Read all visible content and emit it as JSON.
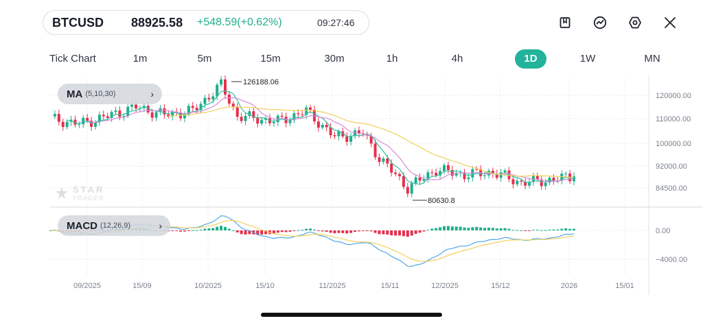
{
  "header": {
    "symbol": "BTCUSD",
    "price": "88925.58",
    "change": "+548.59(+0.62%)",
    "time": "09:27:46",
    "colors": {
      "up": "#1fae8b",
      "down": "#e5304d"
    }
  },
  "toolbar": {
    "icons": [
      "bookmark-icon",
      "indicator-icon",
      "settings-icon",
      "close-icon"
    ]
  },
  "timeframes": {
    "items": [
      "Tick Chart",
      "1m",
      "5m",
      "15m",
      "30m",
      "1h",
      "4h",
      "1D",
      "1W",
      "MN"
    ],
    "selected": "1D"
  },
  "main_chart": {
    "indicator_name": "MA",
    "indicator_params": "(5,10,30)",
    "high_label": "126188.06",
    "low_label": "80630.8",
    "price_axis": [
      "120000.00",
      "110000.00",
      "100000.00",
      "92000.00",
      "84500.00"
    ],
    "watermark": {
      "brand": "STAR",
      "sub": "TRADER"
    }
  },
  "macd_chart": {
    "indicator_name": "MACD",
    "indicator_params": "(12,26,9)",
    "axis": [
      "0.00",
      "−4000.00"
    ]
  },
  "time_axis": [
    "09/2025",
    "15/09",
    "10/2025",
    "15/10",
    "11/2025",
    "15/11",
    "12/2025",
    "15/12",
    "2026",
    "15/01"
  ],
  "chart_data": {
    "type": "candlestick",
    "symbol": "BTCUSD",
    "timeframe": "1D",
    "y_ticks": [
      120000,
      110000,
      100000,
      92000,
      84500
    ],
    "annotated_high": 126188.06,
    "annotated_low": 80630.8,
    "approx_close_path": [
      {
        "date": "2025-08-25",
        "close": 111000
      },
      {
        "date": "2025-09-01",
        "close": 109000
      },
      {
        "date": "2025-09-08",
        "close": 112000
      },
      {
        "date": "2025-09-15",
        "close": 115500
      },
      {
        "date": "2025-09-22",
        "close": 112500
      },
      {
        "date": "2025-09-29",
        "close": 114000
      },
      {
        "date": "2025-10-06",
        "close": 124000
      },
      {
        "date": "2025-10-10",
        "close": 112000
      },
      {
        "date": "2025-10-20",
        "close": 110000
      },
      {
        "date": "2025-10-27",
        "close": 114000
      },
      {
        "date": "2025-11-03",
        "close": 104000
      },
      {
        "date": "2025-11-10",
        "close": 105500
      },
      {
        "date": "2025-11-14",
        "close": 96000
      },
      {
        "date": "2025-11-21",
        "close": 84500
      },
      {
        "date": "2025-11-28",
        "close": 91500
      },
      {
        "date": "2025-12-05",
        "close": 89500
      },
      {
        "date": "2025-12-12",
        "close": 90500
      },
      {
        "date": "2025-12-19",
        "close": 86500
      },
      {
        "date": "2025-12-26",
        "close": 87500
      },
      {
        "date": "2026-01-01",
        "close": 88925.58
      }
    ],
    "moving_averages": [
      "MA(5)",
      "MA(10)",
      "MA(30)"
    ],
    "macd": {
      "params": "(12,26,9)",
      "y_ticks": [
        0,
        -4000
      ],
      "approx_histogram_sign_by_period": [
        {
          "date": "2025-09-01",
          "sign": "negative"
        },
        {
          "date": "2025-09-15",
          "sign": "positive"
        },
        {
          "date": "2025-10-06",
          "sign": "positive"
        },
        {
          "date": "2025-10-15",
          "sign": "negative"
        },
        {
          "date": "2025-11-01",
          "sign": "negative"
        },
        {
          "date": "2025-11-20",
          "sign": "negative"
        },
        {
          "date": "2025-12-05",
          "sign": "positive"
        },
        {
          "date": "2025-12-20",
          "sign": "positive"
        },
        {
          "date": "2026-01-01",
          "sign": "positive"
        }
      ],
      "approx_min_macd": -5000
    }
  }
}
